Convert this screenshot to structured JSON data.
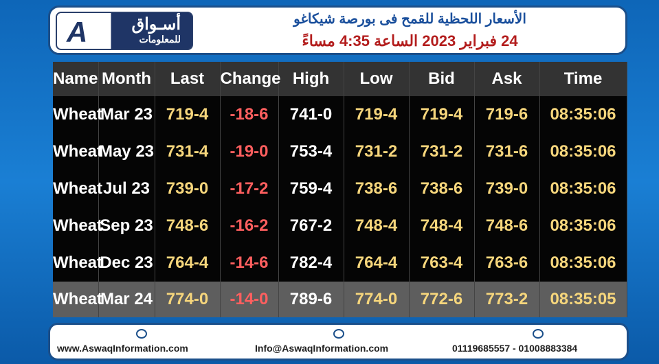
{
  "header": {
    "logo_text_1": "أسـواق",
    "logo_text_2": "للمعلومات",
    "title_line1": "الأسعار اللحظية للقمح فى بورصة شيكاغو",
    "title_line2": "24 فبراير 2023 الساعة 4:35 مساءً"
  },
  "table": {
    "columns": [
      "Name",
      "Month",
      "Last",
      "Change",
      "High",
      "Low",
      "Bid",
      "Ask",
      "Time"
    ],
    "rows": [
      [
        "Wheat",
        "Mar 23",
        "719-4",
        "-18-6",
        "741-0",
        "719-4",
        "719-4",
        "719-6",
        "08:35:06"
      ],
      [
        "Wheat",
        "May 23",
        "731-4",
        "-19-0",
        "753-4",
        "731-2",
        "731-2",
        "731-6",
        "08:35:06"
      ],
      [
        "Wheat",
        "Jul 23",
        "739-0",
        "-17-2",
        "759-4",
        "738-6",
        "738-6",
        "739-0",
        "08:35:06"
      ],
      [
        "Wheat",
        "Sep 23",
        "748-6",
        "-16-2",
        "767-2",
        "748-4",
        "748-4",
        "748-6",
        "08:35:06"
      ],
      [
        "Wheat",
        "Dec 23",
        "764-4",
        "-14-6",
        "782-4",
        "764-4",
        "763-4",
        "763-6",
        "08:35:06"
      ],
      [
        "Wheat",
        "Mar 24",
        "774-0",
        "-14-0",
        "789-6",
        "774-0",
        "772-6",
        "773-2",
        "08:35:05"
      ]
    ]
  },
  "footer": {
    "website": "www.AswaqInformation.com",
    "email": "Info@AswaqInformation.com",
    "phones": "01119685557 - 01008883384"
  }
}
